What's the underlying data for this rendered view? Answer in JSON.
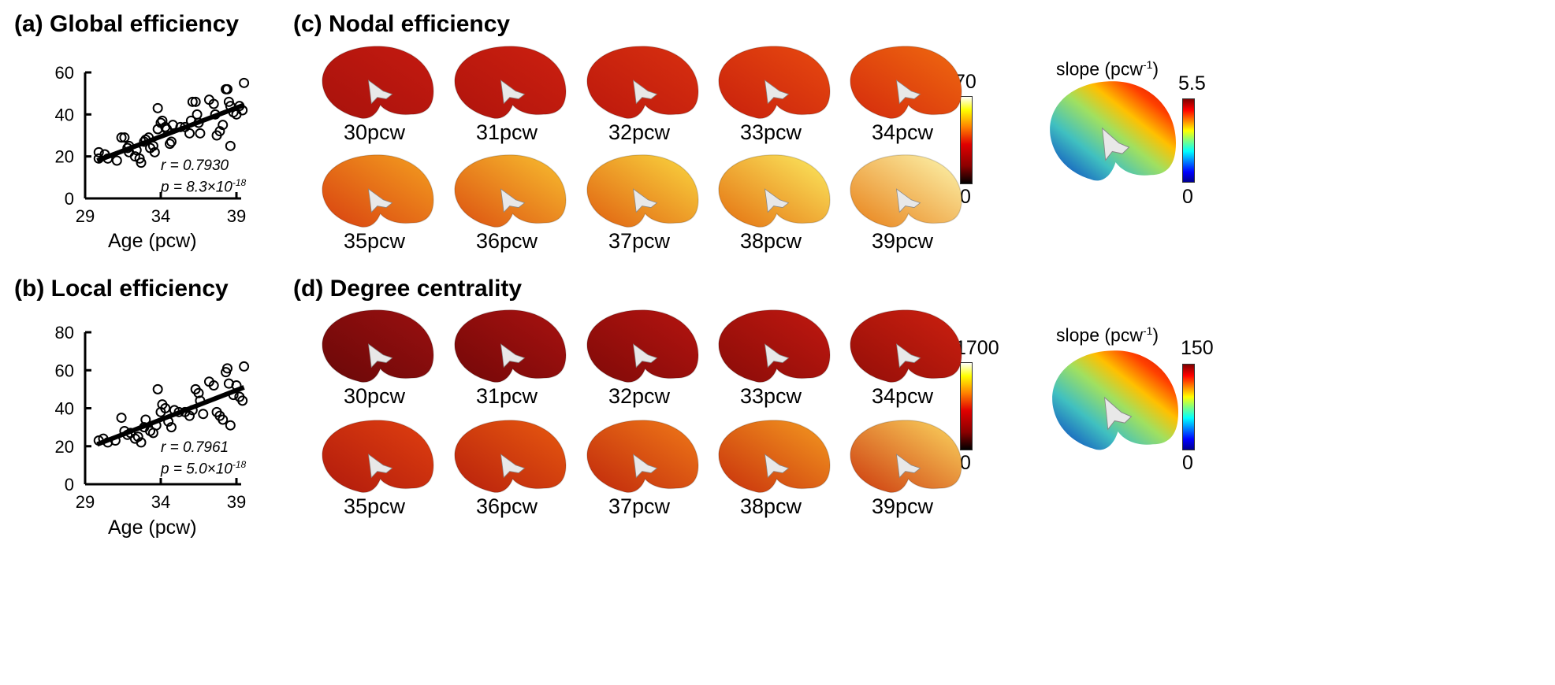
{
  "panels": {
    "a": {
      "title": "(a) Global efficiency",
      "xlabel": "Age (pcw)",
      "r": "r = 0.7930",
      "p": "p = 8.3×10",
      "pexp": "-18"
    },
    "b": {
      "title": "(b) Local efficiency",
      "xlabel": "Age (pcw)",
      "r": "r = 0.7961",
      "p": "p = 5.0×10",
      "pexp": "-18"
    },
    "c": {
      "title": "(c) Nodal efficiency",
      "cbar_max": "70",
      "cbar_min": "0",
      "slope_label": "slope (pcw",
      "slope_exp": "-1",
      "slope_close": ")",
      "slope_max": "5.5",
      "slope_min": "0"
    },
    "d": {
      "title": "(d) Degree centrality",
      "cbar_max": "1700",
      "cbar_min": "0",
      "slope_label": "slope (pcw",
      "slope_exp": "-1",
      "slope_close": ")",
      "slope_max": "150",
      "slope_min": "0"
    }
  },
  "brain_labels": [
    "30pcw",
    "31pcw",
    "32pcw",
    "33pcw",
    "34pcw",
    "35pcw",
    "36pcw",
    "37pcw",
    "38pcw",
    "39pcw"
  ],
  "brain_colors": {
    "c": [
      [
        "#a8120c",
        "#c41a10"
      ],
      [
        "#b0140c",
        "#cc2010"
      ],
      [
        "#bc180c",
        "#d83010"
      ],
      [
        "#c8200c",
        "#e84a10"
      ],
      [
        "#d42a0c",
        "#f06a10"
      ],
      [
        "#d84010",
        "#f4a020"
      ],
      [
        "#dc5010",
        "#f8c030"
      ],
      [
        "#e06010",
        "#fad840"
      ],
      [
        "#e47010",
        "#fcec60"
      ],
      [
        "#e88018",
        "#fdf8b0"
      ]
    ],
    "d": [
      [
        "#6a0808",
        "#9a1010"
      ],
      [
        "#740808",
        "#a81210"
      ],
      [
        "#800a08",
        "#b41410"
      ],
      [
        "#8a0c08",
        "#c01810"
      ],
      [
        "#940e08",
        "#cc2010"
      ],
      [
        "#b01a0c",
        "#e04010"
      ],
      [
        "#b8200c",
        "#e85a10"
      ],
      [
        "#c0280c",
        "#f07a18"
      ],
      [
        "#c8300c",
        "#f49a20"
      ],
      [
        "#cc380c",
        "#fcd860"
      ]
    ]
  },
  "chart_data": [
    {
      "type": "scatter",
      "title": "(a) Global efficiency",
      "xlabel": "Age (pcw)",
      "ylabel": "",
      "xlim": [
        29,
        39.5
      ],
      "ylim": [
        0,
        60
      ],
      "xticks": [
        29,
        34,
        39
      ],
      "yticks": [
        0,
        20,
        40,
        60
      ],
      "fit": [
        [
          29.8,
          18
        ],
        [
          39.5,
          44.5
        ]
      ],
      "points": [
        [
          29.9,
          22
        ],
        [
          29.9,
          19
        ],
        [
          30.3,
          21
        ],
        [
          30.5,
          19
        ],
        [
          31.1,
          18
        ],
        [
          31.4,
          29
        ],
        [
          31.6,
          29
        ],
        [
          31.8,
          24
        ],
        [
          31.9,
          25
        ],
        [
          31.9,
          22
        ],
        [
          32.3,
          20
        ],
        [
          32.4,
          23
        ],
        [
          32.6,
          19
        ],
        [
          32.7,
          17
        ],
        [
          32.9,
          27
        ],
        [
          33.0,
          28
        ],
        [
          33.2,
          29
        ],
        [
          33.3,
          24
        ],
        [
          33.5,
          25
        ],
        [
          33.6,
          22
        ],
        [
          33.8,
          33
        ],
        [
          33.8,
          43
        ],
        [
          34.0,
          36
        ],
        [
          34.1,
          37
        ],
        [
          34.3,
          34
        ],
        [
          34.4,
          33
        ],
        [
          34.6,
          26
        ],
        [
          34.7,
          27
        ],
        [
          34.8,
          35
        ],
        [
          35.3,
          34
        ],
        [
          35.6,
          34
        ],
        [
          35.9,
          31
        ],
        [
          36.0,
          37
        ],
        [
          36.1,
          46
        ],
        [
          36.3,
          46
        ],
        [
          36.4,
          40
        ],
        [
          36.5,
          36
        ],
        [
          36.6,
          31
        ],
        [
          37.2,
          47
        ],
        [
          37.5,
          45
        ],
        [
          37.6,
          40
        ],
        [
          37.7,
          30
        ],
        [
          37.9,
          32
        ],
        [
          38.1,
          35
        ],
        [
          38.3,
          52
        ],
        [
          38.4,
          52
        ],
        [
          38.5,
          46
        ],
        [
          38.6,
          44
        ],
        [
          38.6,
          25
        ],
        [
          38.8,
          41
        ],
        [
          39.0,
          40
        ],
        [
          39.2,
          44
        ],
        [
          39.4,
          42
        ],
        [
          39.5,
          55
        ]
      ]
    },
    {
      "type": "scatter",
      "title": "(b) Local efficiency",
      "xlabel": "Age (pcw)",
      "ylabel": "",
      "xlim": [
        29,
        39.5
      ],
      "ylim": [
        0,
        80
      ],
      "xticks": [
        29,
        34,
        39
      ],
      "yticks": [
        0,
        20,
        40,
        60,
        80
      ],
      "fit": [
        [
          29.8,
          21
        ],
        [
          39.5,
          51
        ]
      ],
      "points": [
        [
          29.9,
          23
        ],
        [
          30.2,
          24
        ],
        [
          30.5,
          22
        ],
        [
          31.0,
          23
        ],
        [
          31.4,
          35
        ],
        [
          31.6,
          28
        ],
        [
          31.8,
          26
        ],
        [
          32.0,
          27
        ],
        [
          32.3,
          24
        ],
        [
          32.5,
          25
        ],
        [
          32.7,
          22
        ],
        [
          32.9,
          30
        ],
        [
          33.0,
          34
        ],
        [
          33.3,
          28
        ],
        [
          33.5,
          27
        ],
        [
          33.7,
          31
        ],
        [
          33.8,
          50
        ],
        [
          34.0,
          38
        ],
        [
          34.1,
          42
        ],
        [
          34.3,
          40
        ],
        [
          34.5,
          33
        ],
        [
          34.7,
          30
        ],
        [
          34.9,
          39
        ],
        [
          35.2,
          38
        ],
        [
          35.6,
          38
        ],
        [
          35.9,
          36
        ],
        [
          36.1,
          39
        ],
        [
          36.3,
          50
        ],
        [
          36.5,
          48
        ],
        [
          36.6,
          44
        ],
        [
          36.8,
          37
        ],
        [
          37.2,
          54
        ],
        [
          37.5,
          52
        ],
        [
          37.7,
          38
        ],
        [
          37.9,
          36
        ],
        [
          38.1,
          34
        ],
        [
          38.3,
          59
        ],
        [
          38.4,
          61
        ],
        [
          38.5,
          53
        ],
        [
          38.6,
          31
        ],
        [
          38.8,
          47
        ],
        [
          39.0,
          52
        ],
        [
          39.2,
          46
        ],
        [
          39.4,
          44
        ],
        [
          39.5,
          62
        ]
      ]
    }
  ]
}
